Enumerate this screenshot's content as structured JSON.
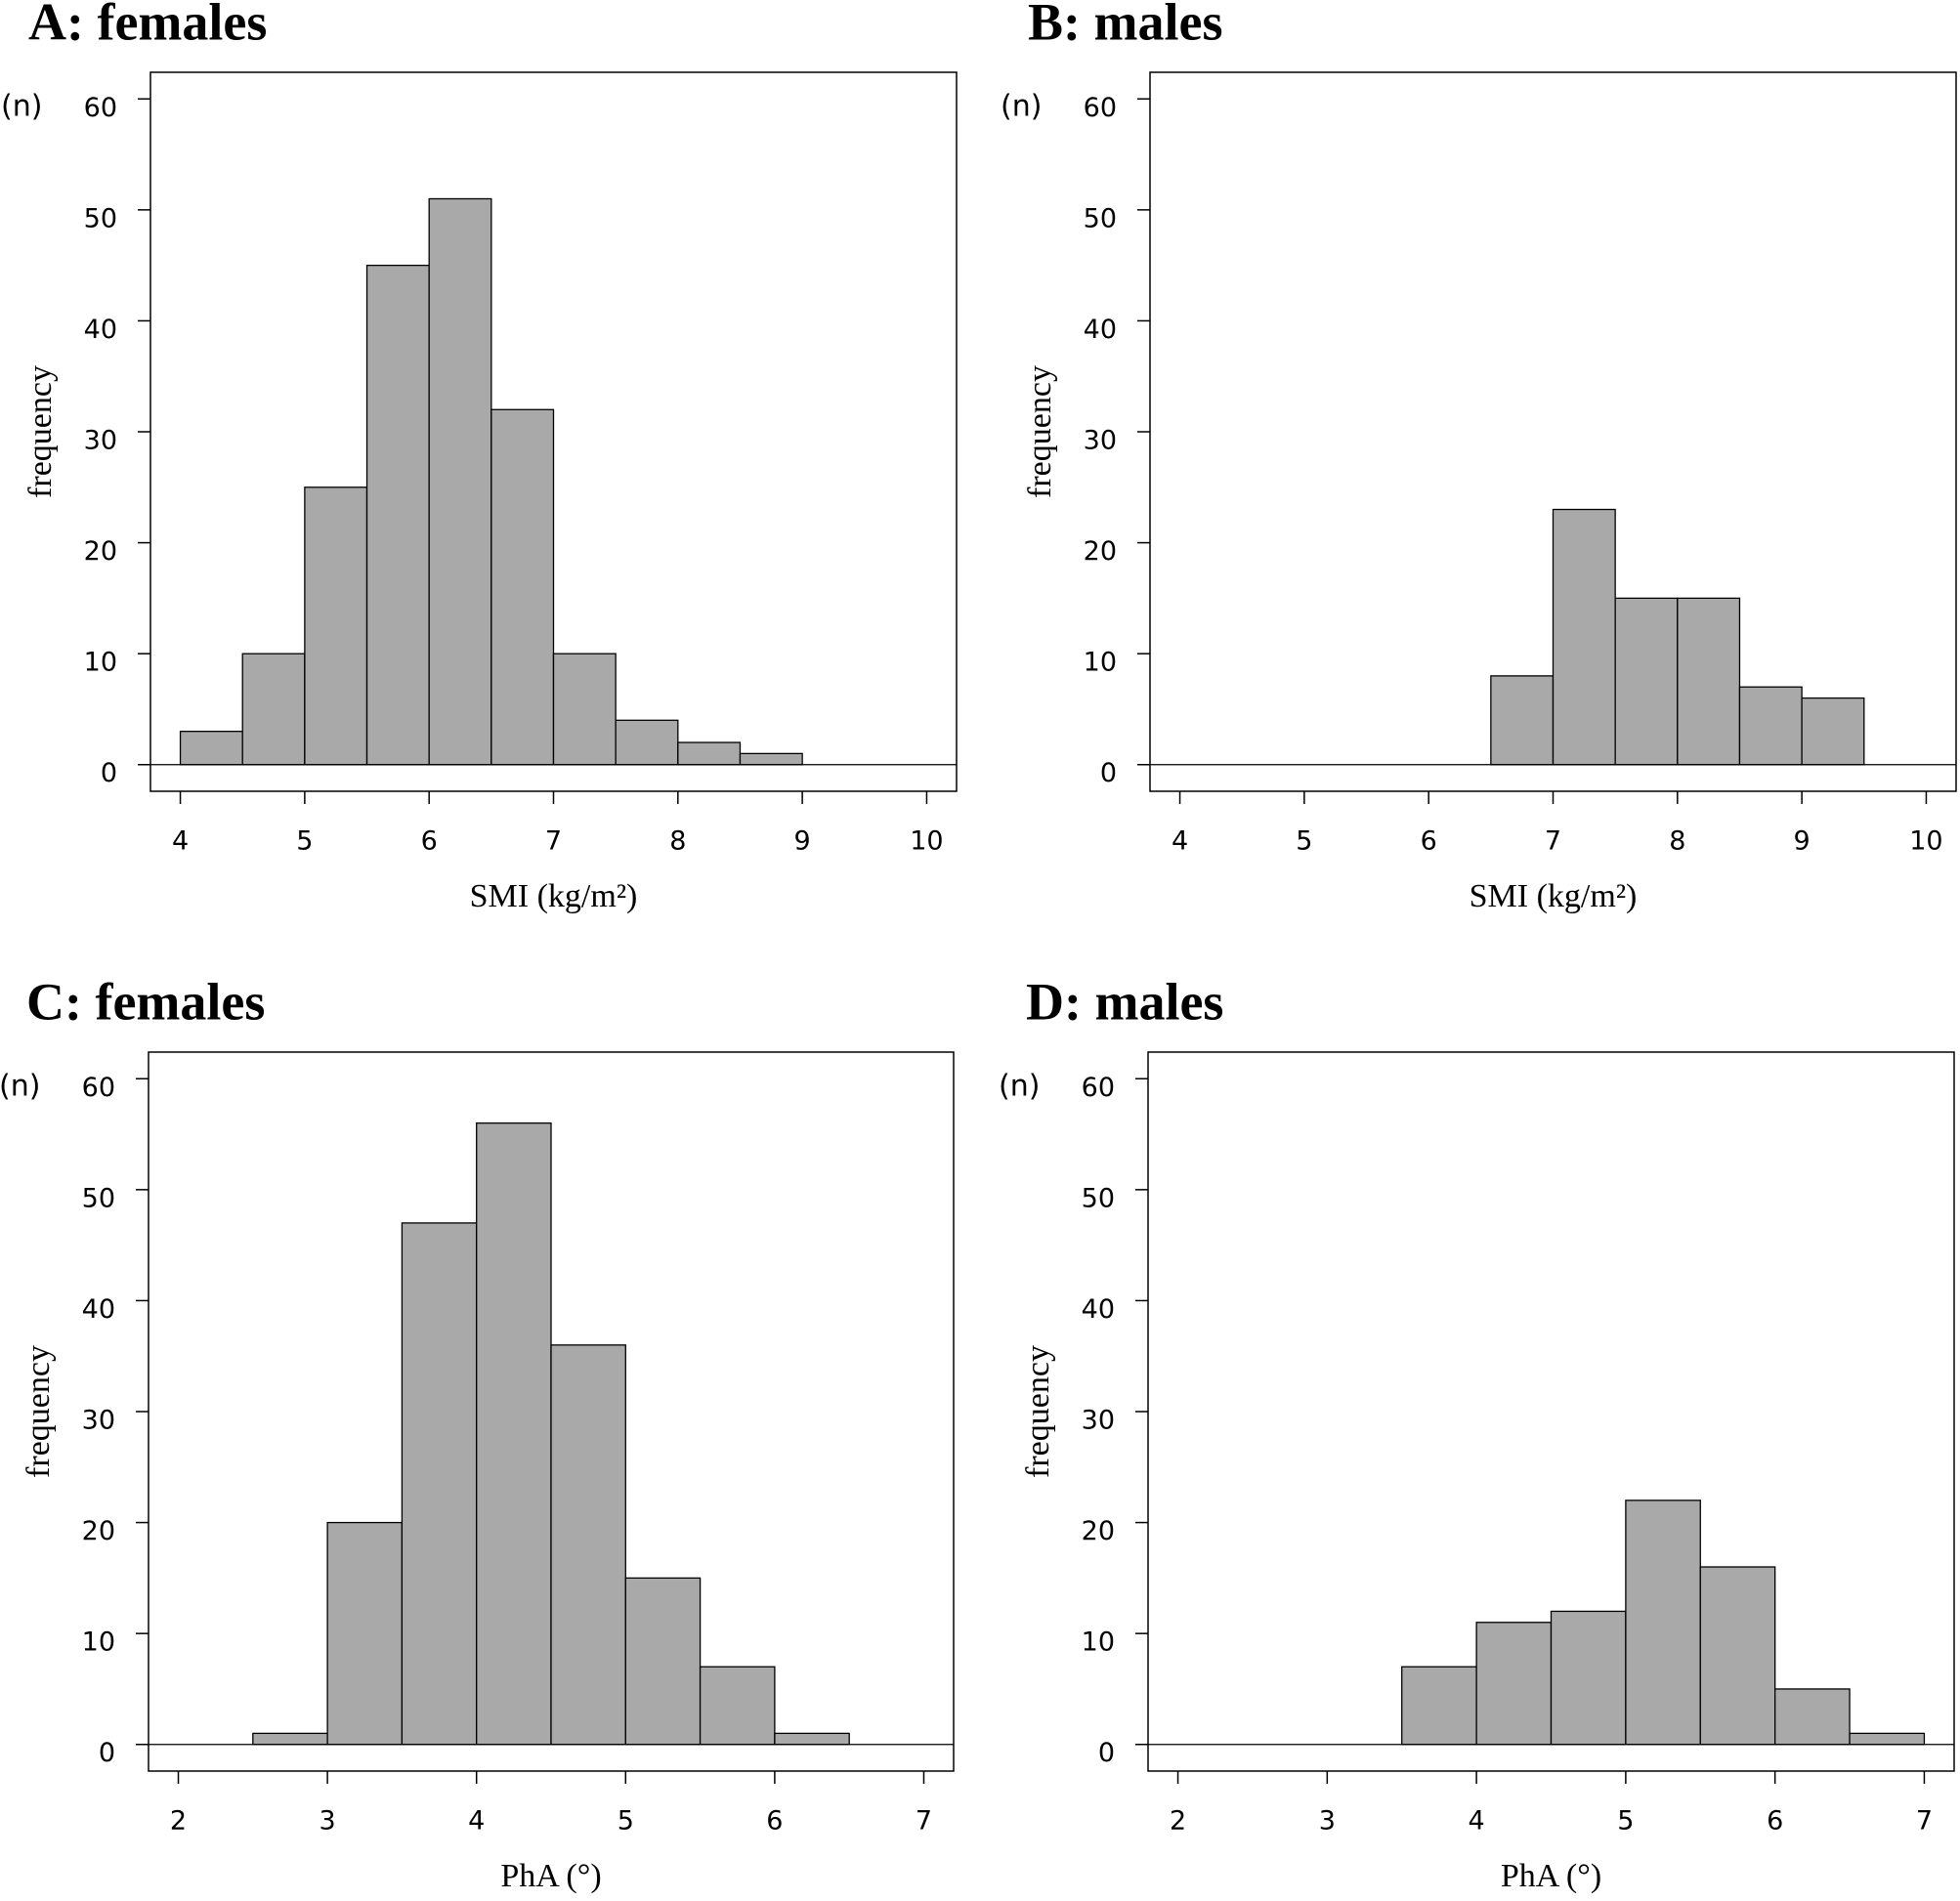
{
  "chart_data": [
    {
      "type": "histogram",
      "title": "A: females",
      "xlabel": "SMI (kg/m²)",
      "ylabel": "frequency",
      "annotation": "(n)",
      "bins": [
        4,
        4.5,
        5,
        5.5,
        6,
        6.5,
        7,
        7.5,
        8,
        8.5,
        9
      ],
      "counts": [
        3,
        10,
        25,
        45,
        51,
        32,
        10,
        4,
        2,
        1
      ],
      "color": "#a9a9a9",
      "xlim": [
        3.76,
        10.24
      ],
      "ylim": [
        -2.4,
        62.4
      ],
      "xticks": [
        4,
        5,
        6,
        7,
        8,
        9,
        10
      ],
      "yticks": [
        0,
        10,
        20,
        30,
        40,
        50,
        60
      ]
    },
    {
      "type": "histogram",
      "title": "B: males",
      "xlabel": "SMI (kg/m²)",
      "ylabel": "frequency",
      "annotation": "(n)",
      "bins": [
        6.5,
        7,
        7.5,
        8,
        8.5,
        9,
        9.5
      ],
      "counts": [
        8,
        23,
        15,
        15,
        7,
        6
      ],
      "color": "#a9a9a9",
      "xlim": [
        3.76,
        10.24
      ],
      "ylim": [
        -2.4,
        62.4
      ],
      "xticks": [
        4,
        5,
        6,
        7,
        8,
        9,
        10
      ],
      "yticks": [
        0,
        10,
        20,
        30,
        40,
        50,
        60
      ]
    },
    {
      "type": "histogram",
      "title": "C: females",
      "xlabel": "PhA (°)",
      "ylabel": "frequency",
      "annotation": "(n)",
      "bins": [
        2.5,
        3,
        3.5,
        4,
        4.5,
        5,
        5.5,
        6,
        6.5
      ],
      "counts": [
        1,
        20,
        47,
        56,
        36,
        15,
        7,
        1
      ],
      "color": "#a9a9a9",
      "xlim": [
        1.8,
        7.2
      ],
      "ylim": [
        -2.4,
        62.4
      ],
      "xticks": [
        2,
        3,
        4,
        5,
        6,
        7
      ],
      "yticks": [
        0,
        10,
        20,
        30,
        40,
        50,
        60
      ]
    },
    {
      "type": "histogram",
      "title": "D: males",
      "xlabel": "PhA (°)",
      "ylabel": "frequency",
      "annotation": "(n)",
      "bins": [
        3.5,
        4,
        4.5,
        5,
        5.5,
        6,
        6.5,
        7
      ],
      "counts": [
        7,
        11,
        12,
        22,
        16,
        5,
        1
      ],
      "color": "#a9a9a9",
      "xlim": [
        1.8,
        7.2
      ],
      "ylim": [
        -2.4,
        62.4
      ],
      "xticks": [
        2,
        3,
        4,
        5,
        6,
        7
      ],
      "yticks": [
        0,
        10,
        20,
        30,
        40,
        50,
        60
      ]
    }
  ]
}
